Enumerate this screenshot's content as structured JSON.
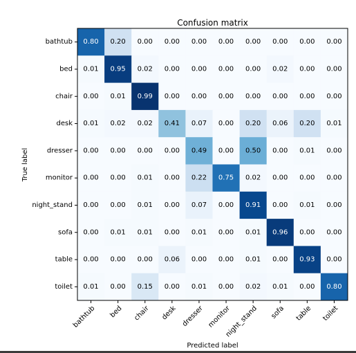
{
  "chart_data": {
    "type": "heatmap",
    "title": "Confusion matrix",
    "xlabel": "Predicted label",
    "ylabel": "True label",
    "x_categories": [
      "bathtub",
      "bed",
      "chair",
      "desk",
      "dresser",
      "monitor",
      "night_stand",
      "sofa",
      "table",
      "toilet"
    ],
    "y_categories": [
      "bathtub",
      "bed",
      "chair",
      "desk",
      "dresser",
      "monitor",
      "night_stand",
      "sofa",
      "table",
      "toilet"
    ],
    "values": [
      [
        0.8,
        0.2,
        0.0,
        0.0,
        0.0,
        0.0,
        0.0,
        0.0,
        0.0,
        0.0
      ],
      [
        0.01,
        0.95,
        0.02,
        0.0,
        0.0,
        0.0,
        0.0,
        0.02,
        0.0,
        0.0
      ],
      [
        0.0,
        0.01,
        0.99,
        0.0,
        0.0,
        0.0,
        0.0,
        0.0,
        0.0,
        0.0
      ],
      [
        0.01,
        0.02,
        0.02,
        0.41,
        0.07,
        0.0,
        0.2,
        0.06,
        0.2,
        0.01
      ],
      [
        0.0,
        0.0,
        0.0,
        0.0,
        0.49,
        0.0,
        0.5,
        0.0,
        0.01,
        0.0
      ],
      [
        0.0,
        0.0,
        0.01,
        0.0,
        0.22,
        0.75,
        0.02,
        0.0,
        0.0,
        0.0
      ],
      [
        0.0,
        0.0,
        0.01,
        0.0,
        0.07,
        0.0,
        0.91,
        0.0,
        0.01,
        0.0
      ],
      [
        0.0,
        0.01,
        0.01,
        0.0,
        0.01,
        0.0,
        0.01,
        0.96,
        0.0,
        0.0
      ],
      [
        0.0,
        0.0,
        0.0,
        0.06,
        0.0,
        0.0,
        0.01,
        0.0,
        0.93,
        0.0
      ],
      [
        0.01,
        0.0,
        0.15,
        0.0,
        0.01,
        0.0,
        0.02,
        0.01,
        0.0,
        0.8
      ]
    ],
    "value_format": "0.00",
    "colormap": "Blues",
    "colormap_stops": [
      "#f7fbff",
      "#deebf7",
      "#c6dbef",
      "#9ecae1",
      "#6baed6",
      "#4292c6",
      "#2171b5",
      "#08519c",
      "#08306b"
    ],
    "text_threshold": 0.5,
    "text_color_light": "#ffffff",
    "text_color_dark": "#000000",
    "x_tick_rotation": 45,
    "grid": false
  }
}
